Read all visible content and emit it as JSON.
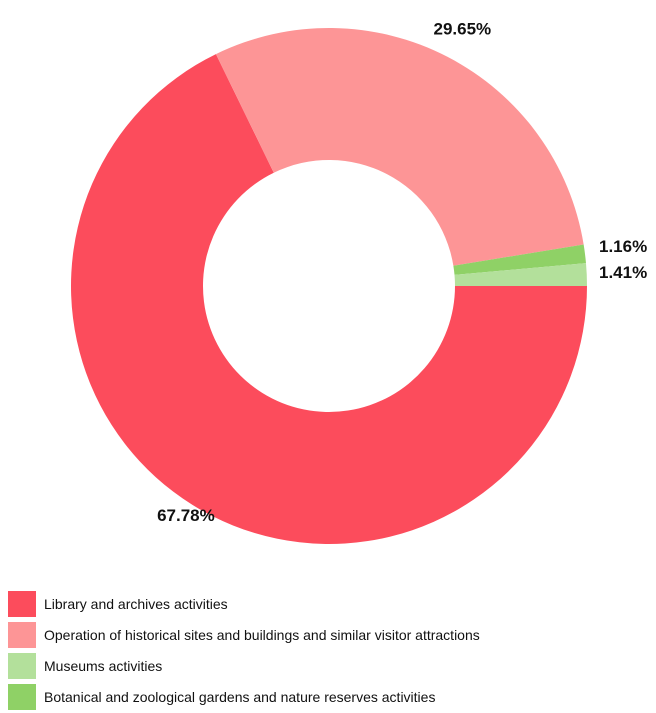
{
  "chart_data": {
    "type": "pie",
    "variant": "donut",
    "title": "",
    "slices": [
      {
        "label": "Library and archives activities",
        "value": 67.78,
        "value_label": "67.78%",
        "color": "#fc4c5c"
      },
      {
        "label": "Operation of historical sites and buildings and similar visitor attractions",
        "value": 29.65,
        "value_label": "29.65%",
        "color": "#fd9596"
      },
      {
        "label": "Botanical and zoological gardens and nature reserves activities",
        "value": 1.16,
        "value_label": "1.16%",
        "color": "#8fd166"
      },
      {
        "label": "Museums activities",
        "value": 1.41,
        "value_label": "1.41%",
        "color": "#b3e09b"
      }
    ],
    "legend": {
      "placement": "bottom-left",
      "items": [
        {
          "label": "Library and archives activities",
          "color": "#fc4c5c"
        },
        {
          "label": "Operation of historical sites and buildings and similar visitor attractions",
          "color": "#fd9596"
        },
        {
          "label": "Museums activities",
          "color": "#b3e09b"
        },
        {
          "label": "Botanical and zoological gardens and nature reserves activities",
          "color": "#8fd166"
        }
      ]
    }
  }
}
